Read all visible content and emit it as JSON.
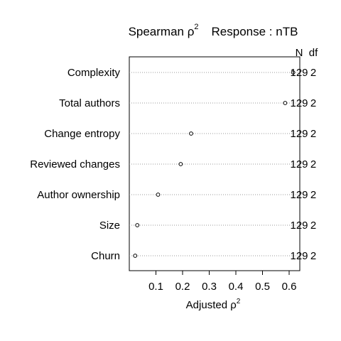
{
  "chart_data": {
    "type": "scatter",
    "title": "Spearman ρ² Response : nTB",
    "title_parts": {
      "prefix": "Spearman ρ",
      "superscript": "2",
      "response": "Response : nTB"
    },
    "xlabel": "Adjusted ρ²",
    "xlabel_parts": {
      "base": "Adjusted ρ",
      "superscript": "2"
    },
    "ylabel": "",
    "xlim": [
      0.0,
      0.64
    ],
    "x_ticks": [
      0.1,
      0.2,
      0.3,
      0.4,
      0.5,
      0.6
    ],
    "x_tick_labels": [
      "0.1",
      "0.2",
      "0.3",
      "0.4",
      "0.5",
      "0.6"
    ],
    "right_columns": [
      "N",
      "df"
    ],
    "grid": "dotted-horizontal",
    "points": [
      {
        "label": "Complexity",
        "value": 0.615,
        "N": "129",
        "df": "2"
      },
      {
        "label": "Total authors",
        "value": 0.585,
        "N": "129",
        "df": "2"
      },
      {
        "label": "Change entropy",
        "value": 0.232,
        "N": "129",
        "df": "2"
      },
      {
        "label": "Reviewed changes",
        "value": 0.193,
        "N": "129",
        "df": "2"
      },
      {
        "label": "Author ownership",
        "value": 0.108,
        "N": "129",
        "df": "2"
      },
      {
        "label": "Size",
        "value": 0.03,
        "N": "129",
        "df": "2"
      },
      {
        "label": "Churn",
        "value": 0.022,
        "N": "129",
        "df": "2"
      }
    ]
  }
}
